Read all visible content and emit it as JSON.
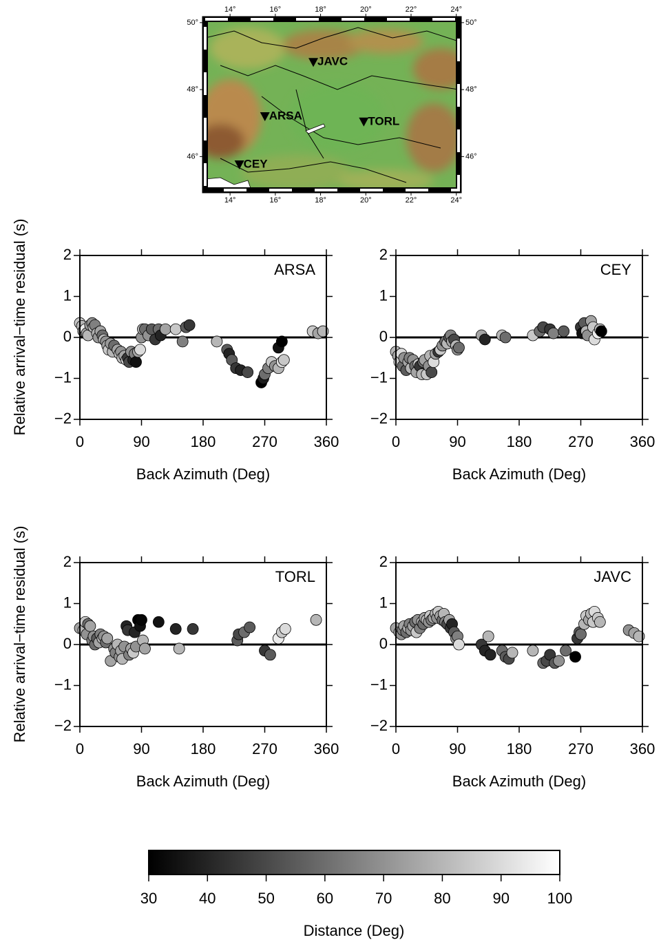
{
  "map": {
    "lonlim": [
      12.9,
      24.1
    ],
    "latlim": [
      45,
      50.1
    ],
    "lon_ticks": [
      {
        "value": 14,
        "label": "14°"
      },
      {
        "value": 16,
        "label": "16°"
      },
      {
        "value": 18,
        "label": "18°"
      },
      {
        "value": 20,
        "label": "20°"
      },
      {
        "value": 22,
        "label": "22°"
      },
      {
        "value": 24,
        "label": "24°"
      }
    ],
    "lat_ticks": [
      {
        "value": 46,
        "label": "46°"
      },
      {
        "value": 48,
        "label": "48°"
      },
      {
        "value": 50,
        "label": "50°"
      }
    ],
    "stations": [
      {
        "name": "JAVC",
        "lon": 17.68,
        "lat": 48.82
      },
      {
        "name": "ARSA",
        "lon": 15.54,
        "lat": 47.2
      },
      {
        "name": "TORL",
        "lon": 19.91,
        "lat": 47.04
      },
      {
        "name": "CEY",
        "lon": 14.41,
        "lat": 45.76
      }
    ]
  },
  "colorbar": {
    "range": [
      30,
      100
    ],
    "ticks": [
      30,
      40,
      50,
      60,
      70,
      80,
      90,
      100
    ],
    "label": "Distance (Deg)",
    "colors": [
      "#000000",
      "#ffffff"
    ]
  },
  "chart_data": [
    {
      "type": "scatter",
      "annotation": "ARSA",
      "xlabel": "Back Azimuth (Deg)",
      "ylabel": "Relative arrival−time residual (s)",
      "xlim": [
        0,
        360
      ],
      "xticks": [
        0,
        90,
        180,
        270,
        360
      ],
      "ylim": [
        -2,
        2
      ],
      "yticks": [
        {
          "value": -2,
          "label": "−2"
        },
        {
          "value": -1,
          "label": "−1"
        },
        0,
        1,
        2
      ],
      "zero_line": true,
      "x": [
        0,
        3,
        5,
        8,
        10,
        12,
        15,
        18,
        20,
        22,
        25,
        27,
        30,
        33,
        35,
        38,
        40,
        42,
        45,
        48,
        50,
        55,
        58,
        60,
        62,
        65,
        68,
        70,
        72,
        75,
        78,
        80,
        82,
        85,
        88,
        90,
        92,
        95,
        100,
        105,
        110,
        115,
        118,
        125,
        140,
        150,
        155,
        160,
        200,
        215,
        218,
        222,
        228,
        235,
        245,
        265,
        268,
        270,
        275,
        280,
        285,
        290,
        295,
        298,
        290,
        295,
        340,
        348,
        355
      ],
      "values": [
        0.35,
        0.28,
        0.15,
        0.2,
        0.1,
        0.05,
        0.3,
        0.35,
        0.25,
        0.3,
        0.1,
        0.0,
        0.15,
        0.05,
        -0.05,
        -0.1,
        -0.2,
        -0.3,
        -0.15,
        -0.35,
        -0.2,
        -0.3,
        -0.4,
        -0.35,
        -0.5,
        -0.45,
        -0.55,
        -0.5,
        -0.6,
        -0.35,
        -0.55,
        -0.4,
        -0.6,
        -0.35,
        -0.3,
        0.0,
        0.2,
        0.2,
        0.05,
        0.2,
        -0.05,
        0.2,
        0.05,
        0.2,
        0.2,
        -0.1,
        0.25,
        0.3,
        -0.1,
        -0.3,
        -0.4,
        -0.55,
        -0.75,
        -0.8,
        -0.85,
        -1.1,
        -1.0,
        -0.9,
        -0.75,
        -0.6,
        -0.7,
        -0.75,
        -0.6,
        -0.55,
        -0.25,
        -0.1,
        0.15,
        0.1,
        0.15
      ],
      "distance": [
        85,
        80,
        70,
        95,
        75,
        80,
        72,
        70,
        80,
        65,
        78,
        72,
        75,
        60,
        80,
        70,
        75,
        85,
        72,
        80,
        60,
        75,
        85,
        70,
        82,
        75,
        88,
        45,
        50,
        70,
        40,
        65,
        35,
        75,
        90,
        70,
        80,
        60,
        70,
        55,
        45,
        60,
        40,
        75,
        85,
        65,
        55,
        45,
        80,
        55,
        40,
        55,
        45,
        40,
        50,
        30,
        38,
        60,
        65,
        85,
        70,
        80,
        90,
        85,
        35,
        30,
        85,
        75,
        80
      ]
    },
    {
      "type": "scatter",
      "annotation": "CEY",
      "xlabel": "Back Azimuth (Deg)",
      "xlim": [
        0,
        360
      ],
      "xticks": [
        0,
        90,
        180,
        270,
        360
      ],
      "ylim": [
        -2,
        2
      ],
      "yticks": [
        {
          "value": -2,
          "label": "−2"
        },
        {
          "value": -1,
          "label": "−1"
        },
        0,
        1,
        2
      ],
      "zero_line": true,
      "x": [
        0,
        3,
        5,
        8,
        10,
        12,
        15,
        18,
        20,
        22,
        25,
        28,
        30,
        33,
        35,
        38,
        40,
        42,
        45,
        48,
        50,
        52,
        55,
        58,
        62,
        65,
        68,
        72,
        75,
        78,
        80,
        82,
        85,
        88,
        90,
        92,
        125,
        130,
        155,
        160,
        200,
        210,
        215,
        225,
        230,
        245,
        270,
        272,
        275,
        278,
        280,
        285,
        288,
        290,
        295,
        298,
        300
      ],
      "values": [
        -0.35,
        -0.45,
        -0.6,
        -0.4,
        -0.7,
        -0.5,
        -0.8,
        -0.6,
        -0.5,
        -0.75,
        -0.55,
        -0.7,
        -0.85,
        -0.65,
        -0.7,
        -0.9,
        -0.6,
        -0.55,
        -0.9,
        -0.7,
        -0.45,
        -0.85,
        -0.6,
        -0.4,
        -0.35,
        -0.3,
        -0.2,
        -0.1,
        -0.15,
        0.0,
        0.05,
        -0.1,
        -0.05,
        -0.2,
        -0.3,
        -0.25,
        0.05,
        -0.05,
        0.05,
        0.0,
        0.05,
        0.15,
        0.25,
        0.2,
        0.1,
        0.15,
        0.25,
        0.1,
        0.35,
        0.15,
        0.05,
        0.4,
        0.25,
        -0.05,
        0.1,
        0.2,
        0.15
      ],
      "distance": [
        80,
        75,
        85,
        90,
        60,
        70,
        55,
        75,
        65,
        80,
        70,
        60,
        75,
        85,
        45,
        80,
        60,
        75,
        85,
        70,
        80,
        50,
        90,
        75,
        45,
        85,
        70,
        60,
        80,
        55,
        65,
        75,
        50,
        80,
        70,
        60,
        75,
        40,
        80,
        60,
        85,
        60,
        50,
        45,
        65,
        55,
        45,
        35,
        55,
        80,
        70,
        75,
        85,
        90,
        95,
        80,
        30
      ]
    },
    {
      "type": "scatter",
      "annotation": "TORL",
      "xlabel": "Back Azimuth (Deg)",
      "ylabel": "Relative arrival−time residual (s)",
      "xlim": [
        0,
        360
      ],
      "xticks": [
        0,
        90,
        180,
        270,
        360
      ],
      "ylim": [
        -2,
        2
      ],
      "yticks": [
        {
          "value": -2,
          "label": "−2"
        },
        {
          "value": -1,
          "label": "−1"
        },
        0,
        1,
        2
      ],
      "zero_line": true,
      "x": [
        0,
        5,
        8,
        10,
        12,
        15,
        18,
        20,
        22,
        25,
        28,
        30,
        33,
        35,
        38,
        40,
        45,
        50,
        52,
        55,
        58,
        60,
        62,
        65,
        68,
        70,
        72,
        75,
        78,
        80,
        82,
        85,
        88,
        90,
        92,
        95,
        115,
        140,
        145,
        165,
        230,
        232,
        240,
        248,
        270,
        278,
        290,
        295,
        300,
        345
      ],
      "values": [
        0.4,
        0.35,
        0.55,
        0.25,
        0.5,
        0.45,
        0.1,
        0.2,
        0.0,
        0.15,
        0.05,
        0.25,
        0.15,
        0.2,
        0.05,
        0.15,
        -0.4,
        -0.1,
        -0.2,
        0.0,
        -0.3,
        -0.15,
        -0.35,
        -0.05,
        0.45,
        0.35,
        -0.25,
        -0.1,
        -0.2,
        0.3,
        -0.05,
        0.6,
        0.45,
        0.6,
        0.1,
        -0.1,
        0.55,
        0.38,
        -0.1,
        0.38,
        0.1,
        0.25,
        0.3,
        0.42,
        -0.15,
        -0.25,
        0.15,
        0.3,
        0.38,
        0.6
      ],
      "distance": [
        75,
        80,
        85,
        70,
        60,
        75,
        65,
        70,
        60,
        55,
        75,
        65,
        80,
        70,
        60,
        75,
        75,
        70,
        65,
        80,
        70,
        75,
        80,
        70,
        40,
        45,
        65,
        75,
        85,
        40,
        70,
        30,
        35,
        32,
        80,
        75,
        35,
        40,
        80,
        45,
        55,
        50,
        60,
        55,
        45,
        55,
        95,
        85,
        90,
        80
      ]
    },
    {
      "type": "scatter",
      "annotation": "JAVC",
      "xlabel": "Back Azimuth (Deg)",
      "xlim": [
        0,
        360
      ],
      "xticks": [
        0,
        90,
        180,
        270,
        360
      ],
      "ylim": [
        -2,
        2
      ],
      "yticks": [
        {
          "value": -2,
          "label": "−2"
        },
        {
          "value": -1,
          "label": "−1"
        },
        0,
        1,
        2
      ],
      "zero_line": true,
      "x": [
        0,
        5,
        8,
        10,
        12,
        15,
        18,
        20,
        22,
        25,
        28,
        30,
        32,
        35,
        38,
        40,
        42,
        45,
        48,
        50,
        52,
        55,
        58,
        60,
        62,
        65,
        68,
        70,
        72,
        75,
        78,
        80,
        82,
        85,
        88,
        90,
        92,
        125,
        130,
        135,
        138,
        155,
        160,
        165,
        170,
        200,
        215,
        220,
        225,
        232,
        238,
        248,
        262,
        265,
        268,
        270,
        275,
        278,
        282,
        285,
        288,
        290,
        295,
        298,
        340,
        348,
        355
      ],
      "values": [
        0.4,
        0.3,
        0.25,
        0.35,
        0.45,
        0.3,
        0.4,
        0.5,
        0.35,
        0.45,
        0.55,
        0.3,
        0.6,
        0.4,
        0.55,
        0.5,
        0.65,
        0.6,
        0.55,
        0.7,
        0.6,
        0.65,
        0.75,
        0.65,
        0.8,
        0.7,
        0.6,
        0.75,
        0.55,
        0.5,
        0.6,
        0.4,
        0.5,
        0.3,
        0.15,
        0.2,
        0.0,
        0.0,
        -0.15,
        0.2,
        -0.25,
        -0.15,
        -0.3,
        -0.35,
        -0.2,
        -0.15,
        -0.45,
        -0.4,
        -0.25,
        -0.45,
        -0.4,
        -0.15,
        -0.3,
        0.15,
        0.3,
        0.25,
        0.5,
        0.7,
        0.6,
        0.75,
        0.55,
        0.8,
        0.65,
        0.55,
        0.35,
        0.28,
        0.2
      ],
      "distance": [
        75,
        80,
        70,
        65,
        75,
        60,
        80,
        65,
        70,
        75,
        60,
        85,
        70,
        65,
        80,
        60,
        75,
        80,
        70,
        85,
        65,
        75,
        80,
        70,
        85,
        75,
        60,
        80,
        65,
        50,
        75,
        45,
        40,
        55,
        70,
        65,
        90,
        45,
        40,
        80,
        40,
        60,
        55,
        50,
        80,
        80,
        60,
        50,
        45,
        55,
        70,
        60,
        30,
        45,
        55,
        60,
        80,
        85,
        75,
        80,
        85,
        90,
        85,
        80,
        70,
        75,
        80
      ]
    }
  ]
}
